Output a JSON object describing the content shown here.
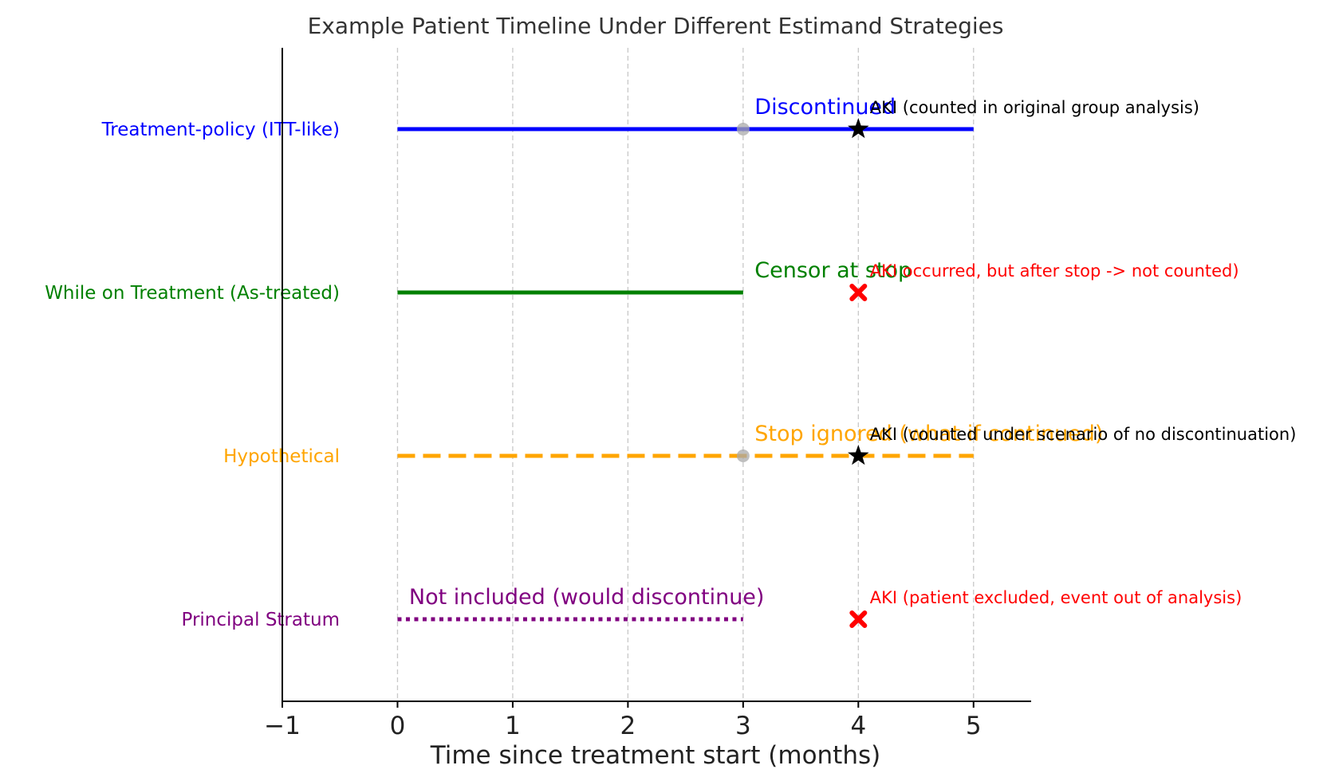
{
  "chart_data": {
    "type": "timeline",
    "title": "Example Patient Timeline Under Different Estimand Strategies",
    "xlabel": "Time since treatment start (months)",
    "ylabel": "",
    "xlim": [
      -1,
      5.5
    ],
    "xticks": [
      -1,
      0,
      1,
      2,
      3,
      4,
      5
    ],
    "xtick_labels": [
      "−1",
      "0",
      "1",
      "2",
      "3",
      "4",
      "5"
    ],
    "grid": "vertical dashed at x = 0..5",
    "rows": [
      {
        "label": "Treatment-policy (ITT-like)",
        "color": "#0000ff",
        "line": {
          "x_start": 0,
          "x_end": 5,
          "style": "solid"
        },
        "stop_marker": {
          "x": 3,
          "shape": "circle",
          "color": "#aaaaaa"
        },
        "event_label": {
          "x": 3.1,
          "text": "Discontinued"
        },
        "aki_marker": {
          "x": 4,
          "shape": "star",
          "color": "#000000"
        },
        "aki_label": {
          "x": 4.1,
          "text": "AKI (counted in original group analysis)",
          "color": "#000000"
        }
      },
      {
        "label": "While on Treatment (As-treated)",
        "color": "#008000",
        "line": {
          "x_start": 0,
          "x_end": 3,
          "style": "solid"
        },
        "stop_marker": null,
        "event_label": {
          "x": 3.1,
          "text": "Censor at stop"
        },
        "aki_marker": {
          "x": 4,
          "shape": "x",
          "color": "#ff0000"
        },
        "aki_label": {
          "x": 4.1,
          "text": "AKI occurred, but after stop -> not counted)",
          "color": "#ff0000"
        }
      },
      {
        "label": "Hypothetical",
        "color": "#ffa500",
        "line": {
          "x_start": 0,
          "x_end": 5,
          "style": "dashed"
        },
        "stop_marker": {
          "x": 3,
          "shape": "circle",
          "color": "#aaaaaa"
        },
        "event_label": {
          "x": 3.1,
          "text": "Stop ignored (what if continued)"
        },
        "aki_marker": {
          "x": 4,
          "shape": "star",
          "color": "#000000"
        },
        "aki_label": {
          "x": 4.1,
          "text": "AKI (counted under scenario of no discontinuation)",
          "color": "#000000"
        }
      },
      {
        "label": "Principal Stratum",
        "color": "#800080",
        "line": {
          "x_start": 0,
          "x_end": 3,
          "style": "dotted"
        },
        "stop_marker": null,
        "event_label": {
          "x": 0.1,
          "text": "Not included (would discontinue)"
        },
        "aki_marker": {
          "x": 4,
          "shape": "x",
          "color": "#ff0000"
        },
        "aki_label": {
          "x": 4.1,
          "text": "AKI (patient excluded, event out of analysis)",
          "color": "#ff0000"
        }
      }
    ]
  }
}
